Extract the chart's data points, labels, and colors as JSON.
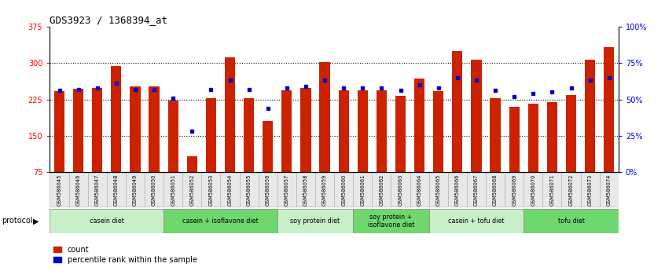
{
  "title": "GDS3923 / 1368394_at",
  "samples": [
    "GSM586045",
    "GSM586046",
    "GSM586047",
    "GSM586048",
    "GSM586049",
    "GSM586050",
    "GSM586051",
    "GSM586052",
    "GSM586053",
    "GSM586054",
    "GSM586055",
    "GSM586056",
    "GSM586057",
    "GSM586058",
    "GSM586059",
    "GSM586060",
    "GSM586061",
    "GSM586062",
    "GSM586063",
    "GSM586064",
    "GSM586065",
    "GSM586066",
    "GSM586067",
    "GSM586068",
    "GSM586069",
    "GSM586070",
    "GSM586071",
    "GSM586072",
    "GSM586073",
    "GSM586074"
  ],
  "counts": [
    242,
    247,
    248,
    293,
    251,
    251,
    222,
    108,
    228,
    312,
    228,
    180,
    243,
    248,
    302,
    243,
    244,
    244,
    233,
    268,
    242,
    325,
    306,
    227,
    210,
    216,
    220,
    234,
    306,
    333
  ],
  "percentiles": [
    56,
    57,
    58,
    61,
    57,
    57,
    51,
    28,
    57,
    63,
    57,
    44,
    58,
    59,
    63,
    58,
    58,
    58,
    56,
    60,
    58,
    65,
    63,
    56,
    52,
    54,
    55,
    58,
    63,
    65
  ],
  "groups": [
    {
      "label": "casein diet",
      "start": 0,
      "end": 5,
      "color": "#c8f0c8"
    },
    {
      "label": "casein + isoflavone diet",
      "start": 6,
      "end": 11,
      "color": "#6ed86e"
    },
    {
      "label": "soy protein diet",
      "start": 12,
      "end": 15,
      "color": "#c8f0c8"
    },
    {
      "label": "soy protein +\nisoflavone diet",
      "start": 16,
      "end": 19,
      "color": "#6ed86e"
    },
    {
      "label": "casein + tofu diet",
      "start": 20,
      "end": 24,
      "color": "#c8f0c8"
    },
    {
      "label": "tofu diet",
      "start": 25,
      "end": 29,
      "color": "#6ed86e"
    }
  ],
  "ylim_left": [
    75,
    375
  ],
  "yticks_left": [
    75,
    150,
    225,
    300,
    375
  ],
  "grid_yticks": [
    150,
    225,
    300
  ],
  "ylim_right": [
    0,
    100
  ],
  "yticks_right": [
    0,
    25,
    50,
    75,
    100
  ],
  "bar_color": "#cc2200",
  "dot_color": "#0000cc",
  "bar_width": 0.55,
  "protocol_label": "protocol",
  "legend_count_label": "count",
  "legend_pct_label": "percentile rank within the sample"
}
